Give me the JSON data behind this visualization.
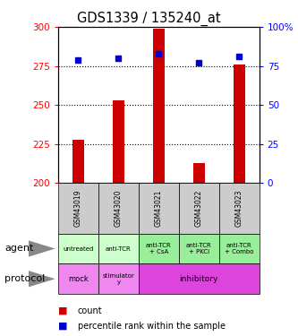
{
  "title": "GDS1339 / 135240_at",
  "samples": [
    "GSM43019",
    "GSM43020",
    "GSM43021",
    "GSM43022",
    "GSM43023"
  ],
  "counts": [
    228,
    253,
    299,
    213,
    276
  ],
  "percentile_ranks": [
    79,
    80,
    83,
    77,
    81
  ],
  "ylim_left": [
    200,
    300
  ],
  "ylim_right": [
    0,
    100
  ],
  "yticks_left": [
    200,
    225,
    250,
    275,
    300
  ],
  "yticks_right": [
    0,
    25,
    50,
    75,
    100
  ],
  "hlines": [
    225,
    250,
    275
  ],
  "bar_color": "#cc0000",
  "dot_color": "#0000cc",
  "agent_labels": [
    "untreated",
    "anti-TCR",
    "anti-TCR\n+ CsA",
    "anti-TCR\n+ PKCi",
    "anti-TCR\n+ Combo"
  ],
  "agent_bg_light": "#ccffcc",
  "agent_bg_dark": "#99ee99",
  "protocol_mock_color": "#ee88ee",
  "protocol_stim_color": "#ee88ee",
  "protocol_inhib_color": "#dd44dd",
  "sample_bg_color": "#cccccc",
  "legend_count_color": "#cc0000",
  "legend_pct_color": "#0000cc",
  "arrow_color": "#888888"
}
